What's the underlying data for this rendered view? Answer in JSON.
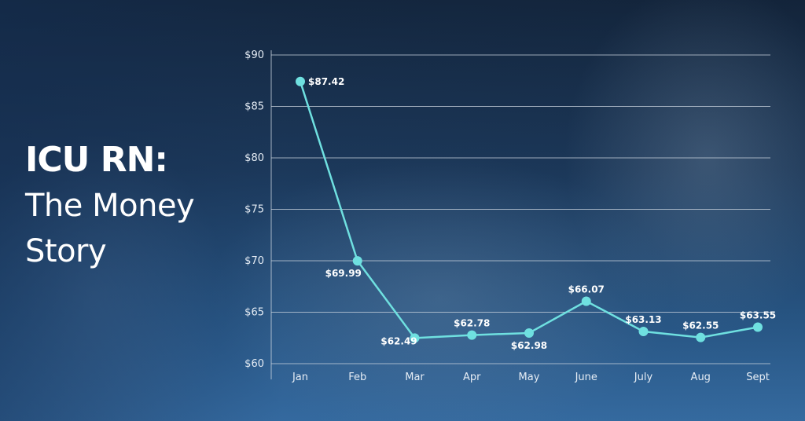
{
  "title": {
    "line1": "ICU RN:",
    "line2": "The Money",
    "line3": "Story"
  },
  "colors": {
    "line": "#6fe0e0",
    "grid": "#c9d3de",
    "text": "#ffffff"
  },
  "chart_data": {
    "type": "line",
    "categories": [
      "Jan",
      "Feb",
      "Mar",
      "Apr",
      "May",
      "June",
      "July",
      "Aug",
      "Sept"
    ],
    "series": [
      {
        "values": [
          87.42,
          69.99,
          62.49,
          62.78,
          62.98,
          66.07,
          63.13,
          62.55,
          63.55
        ],
        "labels": [
          "$87.42",
          "$69.99",
          "$62.49",
          "$62.78",
          "$62.98",
          "$66.07",
          "$63.13",
          "$62.55",
          "$63.55"
        ]
      }
    ],
    "ylim": [
      60,
      90
    ],
    "yticks": [
      60,
      65,
      70,
      75,
      80,
      85,
      90
    ],
    "ytick_labels": [
      "$60",
      "$65",
      "$70",
      "$75",
      "$80",
      "$85",
      "$90"
    ],
    "grid": true,
    "title": "",
    "xlabel": "",
    "ylabel": ""
  }
}
